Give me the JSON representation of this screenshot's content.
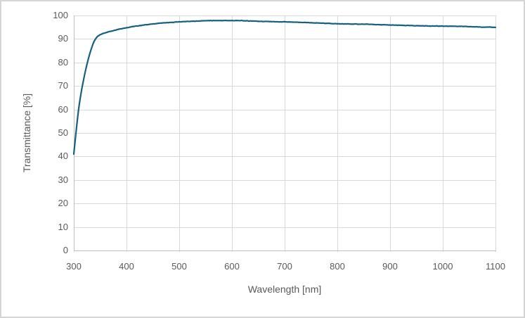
{
  "chart_data": {
    "type": "line",
    "title": "",
    "xlabel": "Wavelength [nm]",
    "ylabel": "Transmittance [%]",
    "xlim": [
      300,
      1100
    ],
    "ylim": [
      0,
      100
    ],
    "x_ticks": [
      300,
      400,
      500,
      600,
      700,
      800,
      900,
      1000,
      1100
    ],
    "y_ticks": [
      0,
      10,
      20,
      30,
      40,
      50,
      60,
      70,
      80,
      90,
      100
    ],
    "grid": true,
    "legend_position": "none",
    "series": [
      {
        "name": "Transmittance",
        "color": "#156082",
        "line_width": 2.2,
        "noise_amplitude": 0.12,
        "points": [
          [
            300,
            41.0
          ],
          [
            302,
            45.5
          ],
          [
            304,
            49.8
          ],
          [
            306,
            54.0
          ],
          [
            308,
            58.0
          ],
          [
            310,
            61.5
          ],
          [
            312,
            64.5
          ],
          [
            315,
            68.5
          ],
          [
            318,
            72.0
          ],
          [
            321,
            75.3
          ],
          [
            324,
            78.3
          ],
          [
            327,
            81.0
          ],
          [
            330,
            83.5
          ],
          [
            333,
            85.7
          ],
          [
            336,
            87.6
          ],
          [
            339,
            89.2
          ],
          [
            342,
            90.3
          ],
          [
            345,
            91.0
          ],
          [
            348,
            91.5
          ],
          [
            351,
            91.9
          ],
          [
            355,
            92.3
          ],
          [
            360,
            92.7
          ],
          [
            365,
            93.0
          ],
          [
            370,
            93.3
          ],
          [
            375,
            93.6
          ],
          [
            380,
            93.9
          ],
          [
            385,
            94.2
          ],
          [
            390,
            94.4
          ],
          [
            395,
            94.6
          ],
          [
            400,
            94.8
          ],
          [
            410,
            95.2
          ],
          [
            420,
            95.5
          ],
          [
            430,
            95.8
          ],
          [
            440,
            96.1
          ],
          [
            450,
            96.3
          ],
          [
            460,
            96.6
          ],
          [
            470,
            96.8
          ],
          [
            480,
            96.9
          ],
          [
            490,
            97.1
          ],
          [
            500,
            97.3
          ],
          [
            510,
            97.4
          ],
          [
            520,
            97.5
          ],
          [
            530,
            97.6
          ],
          [
            540,
            97.7
          ],
          [
            550,
            97.8
          ],
          [
            560,
            97.8
          ],
          [
            570,
            97.8
          ],
          [
            580,
            97.8
          ],
          [
            590,
            97.8
          ],
          [
            600,
            97.8
          ],
          [
            610,
            97.8
          ],
          [
            620,
            97.8
          ],
          [
            630,
            97.7
          ],
          [
            640,
            97.7
          ],
          [
            650,
            97.6
          ],
          [
            660,
            97.5
          ],
          [
            670,
            97.5
          ],
          [
            680,
            97.4
          ],
          [
            690,
            97.3
          ],
          [
            700,
            97.3
          ],
          [
            720,
            97.1
          ],
          [
            740,
            97.0
          ],
          [
            760,
            96.8
          ],
          [
            780,
            96.7
          ],
          [
            800,
            96.5
          ],
          [
            820,
            96.4
          ],
          [
            840,
            96.3
          ],
          [
            860,
            96.2
          ],
          [
            880,
            96.0
          ],
          [
            900,
            95.9
          ],
          [
            920,
            95.8
          ],
          [
            940,
            95.7
          ],
          [
            960,
            95.6
          ],
          [
            980,
            95.5
          ],
          [
            1000,
            95.4
          ],
          [
            1020,
            95.4
          ],
          [
            1040,
            95.3
          ],
          [
            1060,
            95.2
          ],
          [
            1080,
            95.1
          ],
          [
            1100,
            95.0
          ]
        ]
      }
    ]
  },
  "colors": {
    "background": "#ffffff",
    "frame_border": "#d5d5d5",
    "gridline": "#d9d9d9",
    "axis_line": "#bfbfbf",
    "tick_text": "#595959",
    "axis_title_text": "#595959"
  }
}
